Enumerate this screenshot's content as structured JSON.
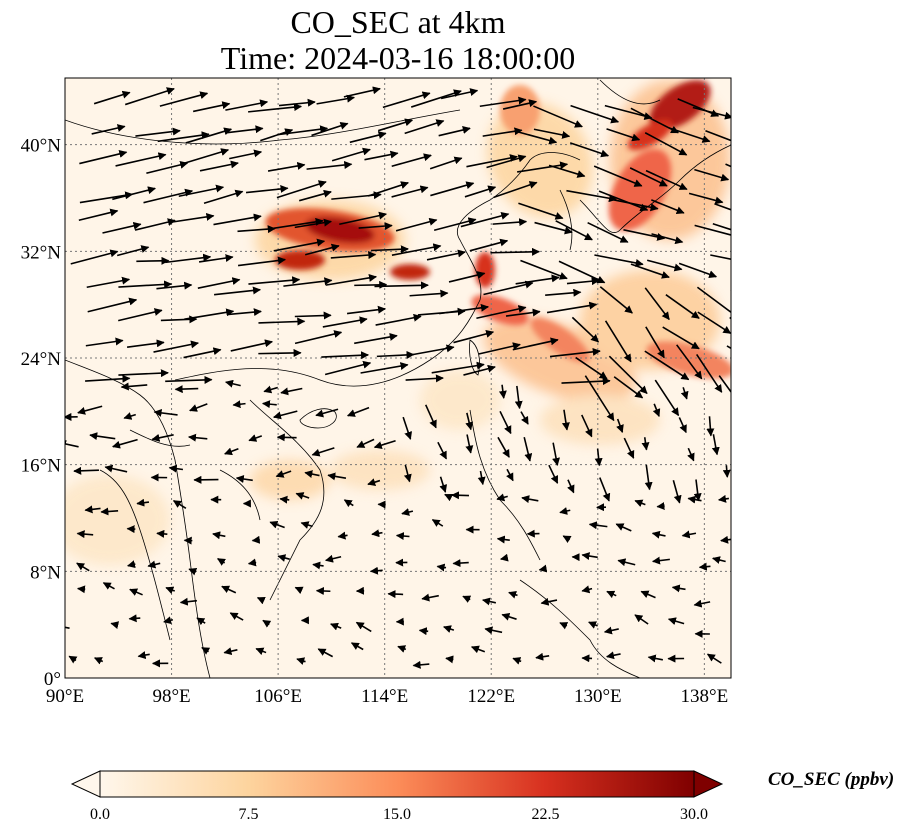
{
  "title": {
    "line1": "CO_SEC at 4km",
    "line2": "Time: 2024-03-16 18:00:00"
  },
  "map": {
    "lon_range": [
      90,
      140
    ],
    "lat_range": [
      0,
      45
    ],
    "lon_ticks": [
      "90°E",
      "98°E",
      "106°E",
      "114°E",
      "122°E",
      "130°E",
      "138°E"
    ],
    "lat_ticks": [
      "0°",
      "8°N",
      "16°N",
      "24°N",
      "32°N",
      "40°N"
    ],
    "grid": "dotted",
    "wind_vectors": "black arrows, predominantly westerly north of 20°N, easterly/northeasterly in the tropics"
  },
  "colorbar": {
    "label": "CO_SEC (ppbv)",
    "colormap": "OrRd",
    "range": [
      0.0,
      30.0
    ],
    "ticks": [
      "0.0",
      "7.5",
      "15.0",
      "22.5",
      "30.0"
    ],
    "extend": "both",
    "colors": [
      "#fff7ec",
      "#fdd49e",
      "#fc8d59",
      "#d7301f",
      "#7f0000"
    ]
  }
}
